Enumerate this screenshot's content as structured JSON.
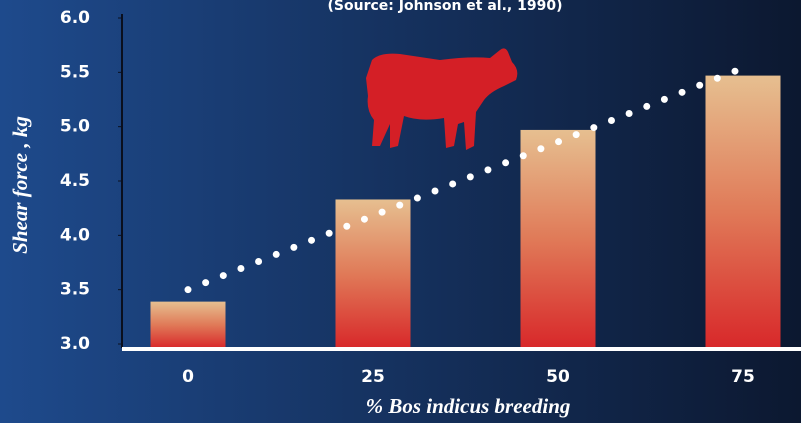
{
  "chart_data": {
    "type": "bar",
    "title": "(Source: Johnson et al., 1990)",
    "y_label": "Shear force , kg",
    "x_label": "% Bos indicus breeding",
    "categories": [
      "0",
      "25",
      "50",
      "75"
    ],
    "series": [
      {
        "color": "#d8282a",
        "values": [
          3.39,
          4.33,
          4.97,
          5.47
        ]
      }
    ],
    "trend_line": {
      "color": "#ffffff",
      "values": [
        3.5,
        4.18,
        4.86,
        5.54
      ]
    },
    "ylim": [
      3.0,
      6.0
    ],
    "yticks": [
      {
        "value": 3,
        "label": "3.0"
      },
      3.5,
      {
        "value": 4,
        "label": "4.0"
      },
      4.5,
      {
        "value": 5,
        "label": "5.0"
      },
      5.5,
      {
        "value": 6,
        "label": "6.0"
      }
    ]
  }
}
